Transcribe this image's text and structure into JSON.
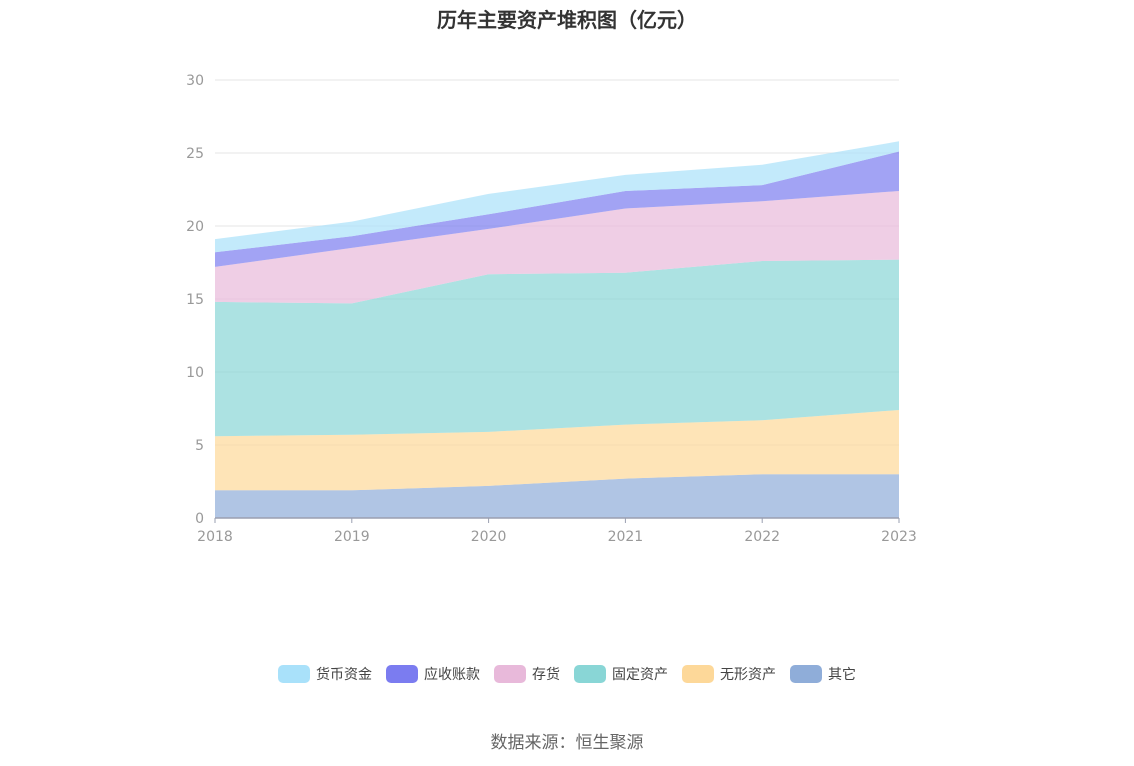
{
  "title": "历年主要资产堆积图（亿元）",
  "source": "数据来源：恒生聚源",
  "chart_data": {
    "type": "area",
    "stacked": true,
    "title": "历年主要资产堆积图（亿元）",
    "x": [
      "2018",
      "2019",
      "2020",
      "2021",
      "2022",
      "2023"
    ],
    "ylim": [
      0,
      30
    ],
    "yticks": [
      0,
      5,
      10,
      15,
      20,
      25,
      30
    ],
    "grid": true,
    "legend_position": "bottom",
    "series": [
      {
        "name": "其它",
        "color": "#8fadd9",
        "values": [
          1.9,
          1.9,
          2.2,
          2.7,
          3.0,
          3.0
        ]
      },
      {
        "name": "无形资产",
        "color": "#fdd899",
        "values": [
          3.7,
          3.8,
          3.7,
          3.7,
          3.7,
          4.4
        ]
      },
      {
        "name": "固定资产",
        "color": "#89d6d6",
        "values": [
          9.2,
          9.0,
          10.8,
          10.4,
          10.9,
          10.3
        ]
      },
      {
        "name": "存货",
        "color": "#e8b9da",
        "values": [
          2.4,
          3.8,
          3.1,
          4.4,
          4.1,
          4.7
        ]
      },
      {
        "name": "应收账款",
        "color": "#7b7cf0",
        "values": [
          1.0,
          0.8,
          1.0,
          1.2,
          1.1,
          2.7
        ]
      },
      {
        "name": "货币资金",
        "color": "#a9e1fa",
        "values": [
          0.9,
          1.0,
          1.4,
          1.1,
          1.4,
          0.7
        ]
      }
    ],
    "legend_order": [
      "货币资金",
      "应收账款",
      "存货",
      "固定资产",
      "无形资产",
      "其它"
    ]
  }
}
